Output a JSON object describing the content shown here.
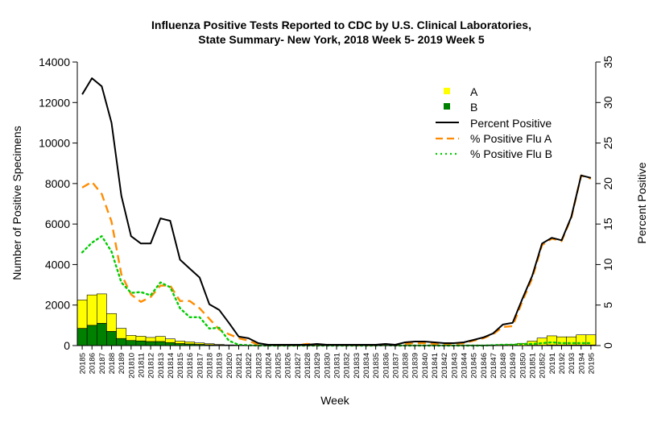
{
  "chart_data": {
    "type": "bar",
    "title": "Influenza Positive Tests Reported to CDC by U.S. Clinical Laboratories,",
    "subtitle": "State Summary- New York, 2018 Week 5- 2019 Week 5",
    "xlabel": "Week",
    "ylabel": "Number of Positive Specimens",
    "y2label": "Percent Positive",
    "ylim": [
      0,
      14000
    ],
    "y2lim": [
      0,
      35
    ],
    "yticks": [
      "0",
      "2000",
      "4000",
      "6000",
      "8000",
      "10000",
      "12000",
      "14000"
    ],
    "y2ticks": [
      "0",
      "5",
      "10",
      "15",
      "20",
      "25",
      "30",
      "35"
    ],
    "categories": [
      "20185",
      "20186",
      "20187",
      "20188",
      "20189",
      "201810",
      "201811",
      "201812",
      "201813",
      "201814",
      "201815",
      "201816",
      "201817",
      "201818",
      "201819",
      "201820",
      "201821",
      "201822",
      "201823",
      "201824",
      "201825",
      "201826",
      "201827",
      "201828",
      "201829",
      "201830",
      "201831",
      "201832",
      "201833",
      "201834",
      "201835",
      "201836",
      "201837",
      "201838",
      "201839",
      "201840",
      "201841",
      "201842",
      "201843",
      "201844",
      "201845",
      "201846",
      "201847",
      "201848",
      "201849",
      "201850",
      "201851",
      "201852",
      "20191",
      "20192",
      "20193",
      "20194",
      "20195"
    ],
    "series": [
      {
        "name": "A",
        "kind": "stacked-bar",
        "color": "#ffff00",
        "values": [
          1400,
          1500,
          1450,
          880,
          500,
          250,
          230,
          200,
          250,
          180,
          120,
          100,
          70,
          50,
          30,
          20,
          15,
          10,
          8,
          5,
          5,
          5,
          5,
          5,
          5,
          5,
          5,
          5,
          5,
          5,
          5,
          10,
          10,
          10,
          10,
          10,
          10,
          10,
          10,
          15,
          20,
          25,
          30,
          40,
          50,
          100,
          200,
          350,
          450,
          400,
          400,
          500,
          500
        ]
      },
      {
        "name": "B",
        "kind": "stacked-bar",
        "color": "#008000",
        "values": [
          850,
          1000,
          1100,
          700,
          350,
          250,
          230,
          200,
          200,
          150,
          100,
          80,
          60,
          40,
          25,
          15,
          10,
          5,
          3,
          2,
          2,
          2,
          2,
          2,
          2,
          2,
          2,
          2,
          2,
          2,
          2,
          2,
          2,
          2,
          2,
          2,
          2,
          2,
          2,
          2,
          2,
          2,
          2,
          5,
          10,
          10,
          20,
          20,
          30,
          30,
          30,
          30,
          30
        ]
      },
      {
        "name": "Percent Positive",
        "kind": "line",
        "axis": "right",
        "color": "#000000",
        "dash": "solid",
        "values": [
          31,
          33,
          32,
          27.5,
          18.5,
          13.5,
          12.6,
          12.6,
          15.7,
          15.4,
          10.6,
          9.5,
          8.4,
          5.1,
          4.4,
          2.8,
          1.1,
          0.9,
          0.3,
          0.1,
          0.1,
          0.1,
          0.1,
          0.1,
          0.2,
          0.1,
          0.1,
          0.1,
          0.1,
          0.1,
          0.1,
          0.2,
          0.1,
          0.4,
          0.5,
          0.5,
          0.4,
          0.3,
          0.3,
          0.4,
          0.7,
          1.0,
          1.5,
          2.6,
          2.8,
          5.8,
          8.6,
          12.6,
          13.3,
          13.0,
          15.9,
          21.0,
          20.7
        ]
      },
      {
        "name": "% Positive Flu A",
        "kind": "line",
        "axis": "right",
        "color": "#ff8c00",
        "dash": "dashed",
        "values": [
          19.5,
          20.2,
          18.7,
          15.3,
          8.8,
          6.3,
          5.4,
          6.0,
          7.4,
          7.4,
          5.5,
          5.5,
          4.6,
          3.3,
          2.0,
          1.4,
          0.9,
          0.6,
          0.1,
          0.05,
          0.05,
          0.05,
          0.05,
          0.2,
          0.1,
          0.1,
          0.05,
          0.05,
          0.05,
          0.05,
          0.05,
          0.1,
          0.05,
          0.2,
          0.3,
          0.3,
          0.2,
          0.2,
          0.2,
          0.3,
          0.6,
          0.9,
          1.4,
          2.3,
          2.4,
          5.5,
          8.3,
          12.4,
          13.2,
          12.9,
          15.8,
          21.0,
          20.6
        ]
      },
      {
        "name": "% Positive Flu B",
        "kind": "line",
        "axis": "right",
        "color": "#00cc00",
        "dash": "dotted",
        "values": [
          11.5,
          12.7,
          13.5,
          11.6,
          7.8,
          6.5,
          6.6,
          6.2,
          7.8,
          7.2,
          4.6,
          3.5,
          3.5,
          2.1,
          2.2,
          0.6,
          0.1,
          0.05,
          0.0,
          0.0,
          0.0,
          0.0,
          0.0,
          0.0,
          0.0,
          0.0,
          0.0,
          0.0,
          0.0,
          0.0,
          0.0,
          0.05,
          0.0,
          0.0,
          0.0,
          0.0,
          0.0,
          0.0,
          0.0,
          0.0,
          0.0,
          0.0,
          0.05,
          0.1,
          0.1,
          0.2,
          0.2,
          0.3,
          0.4,
          0.3,
          0.3,
          0.3,
          0.3
        ]
      }
    ],
    "legend": {
      "position": "top-right",
      "entries": [
        "A",
        "B",
        "Percent Positive",
        "% Positive Flu A",
        "% Positive Flu B"
      ]
    },
    "grid": false
  }
}
